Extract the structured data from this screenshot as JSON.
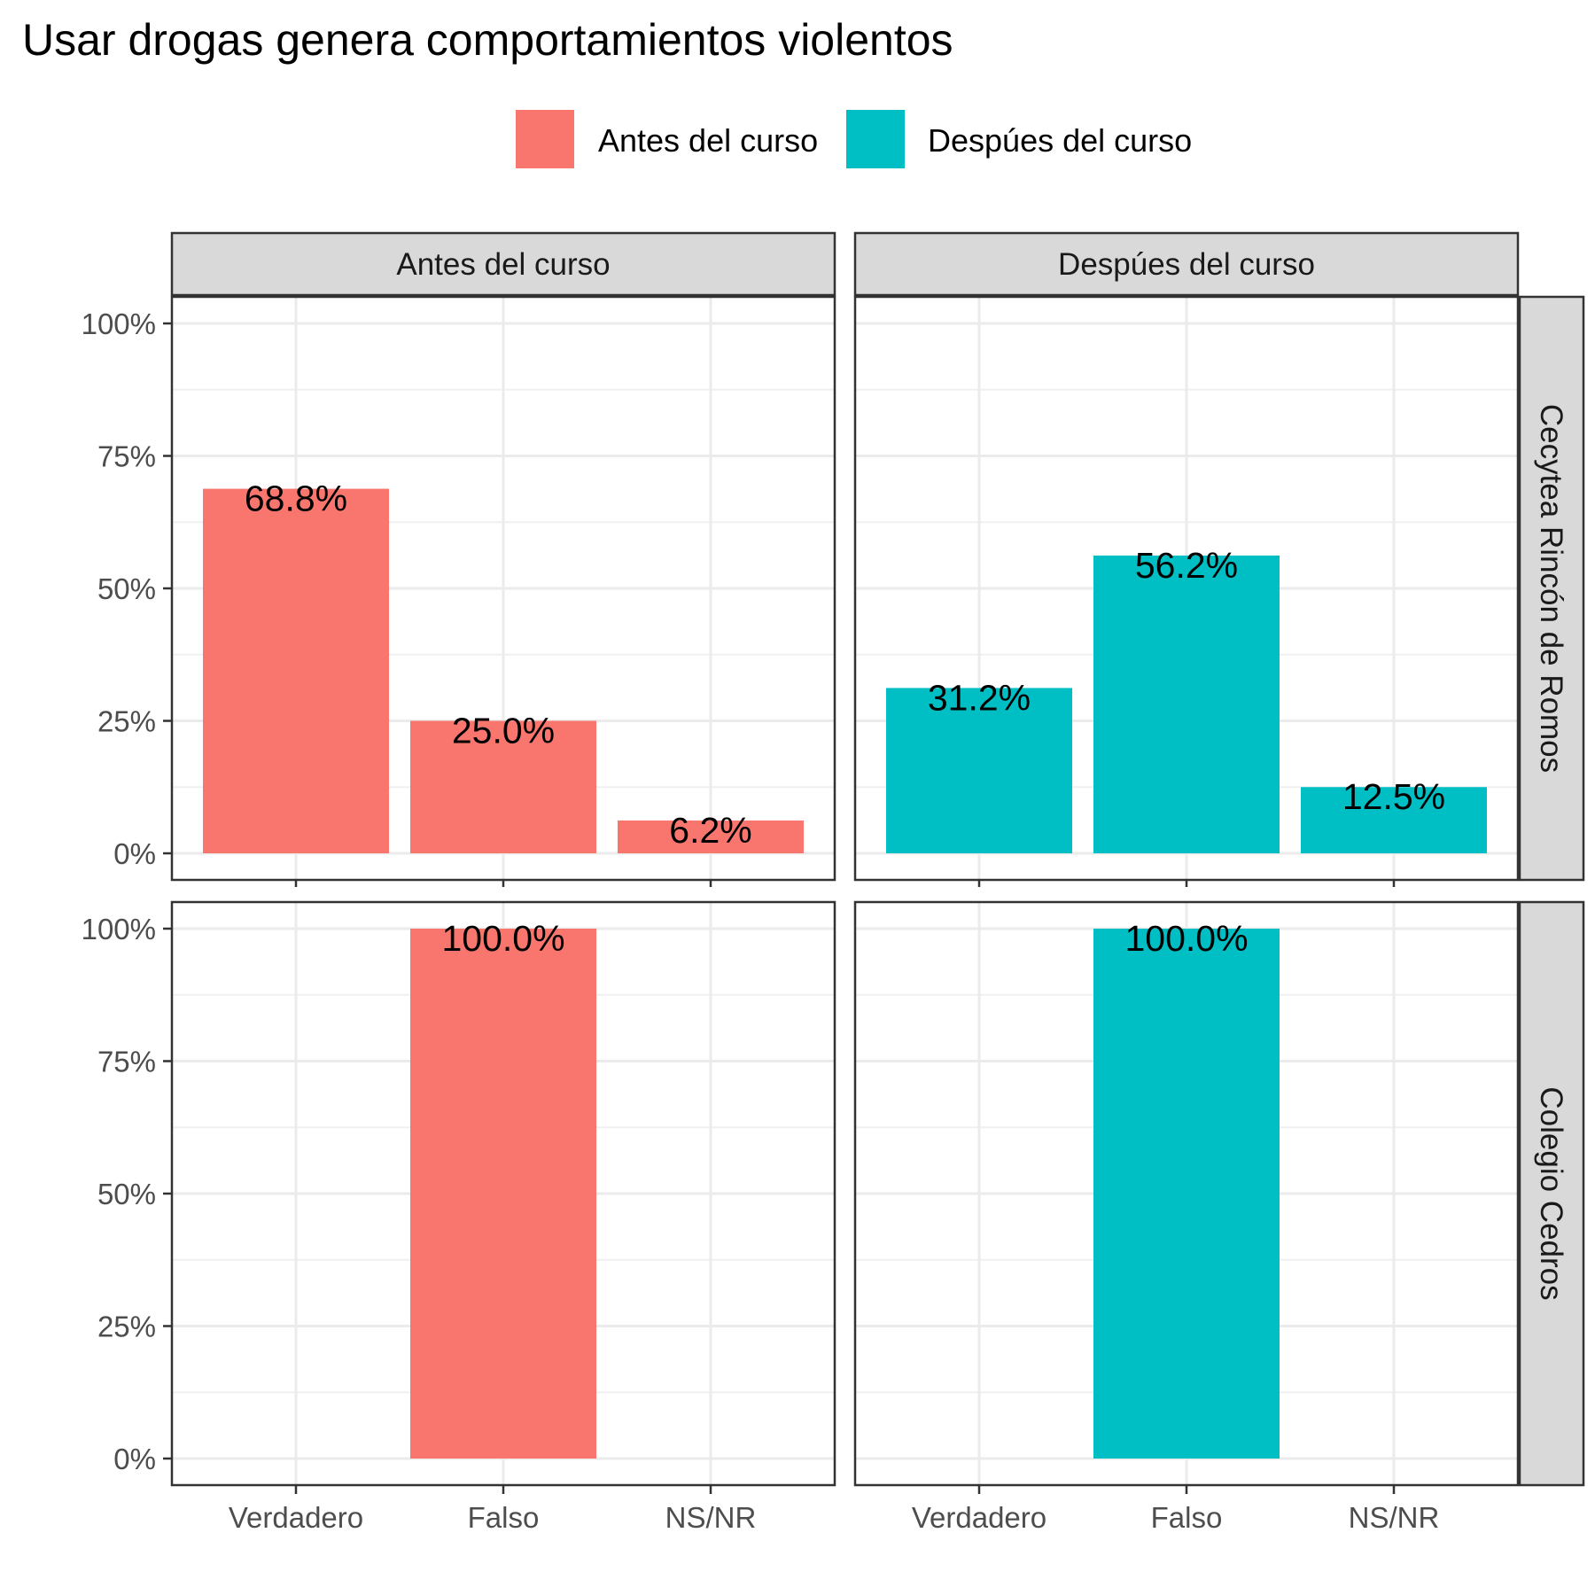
{
  "chart_data": {
    "type": "bar",
    "title": "Usar drogas genera comportamientos violentos",
    "categories": [
      "Verdadero",
      "Falso",
      "NS/NR"
    ],
    "y_ticks": [
      "0%",
      "25%",
      "50%",
      "75%",
      "100%"
    ],
    "ylim": [
      0,
      100
    ],
    "y_unit": "%",
    "grid": true,
    "legend_position": "top",
    "legend": [
      {
        "label": "Antes del curso",
        "color": "#F8766D"
      },
      {
        "label": "Despúes del curso",
        "color": "#00BFC4"
      }
    ],
    "facet_columns": [
      "Antes del curso",
      "Despúes del curso"
    ],
    "facet_rows": [
      "Cecytea Rincón de Romos",
      "Colegio Cedros"
    ],
    "panels": [
      {
        "row": 0,
        "col": 0,
        "series": "Antes del curso",
        "values": [
          68.8,
          25.0,
          6.2
        ],
        "labels": [
          "68.8%",
          "25.0%",
          "6.2%"
        ]
      },
      {
        "row": 0,
        "col": 1,
        "series": "Despúes del curso",
        "values": [
          31.2,
          56.2,
          12.5
        ],
        "labels": [
          "31.2%",
          "56.2%",
          "12.5%"
        ]
      },
      {
        "row": 1,
        "col": 0,
        "series": "Antes del curso",
        "values": [
          null,
          100.0,
          null
        ],
        "labels": [
          "",
          "100.0%",
          ""
        ]
      },
      {
        "row": 1,
        "col": 1,
        "series": "Despúes del curso",
        "values": [
          null,
          100.0,
          null
        ],
        "labels": [
          "",
          "100.0%",
          ""
        ]
      }
    ]
  }
}
